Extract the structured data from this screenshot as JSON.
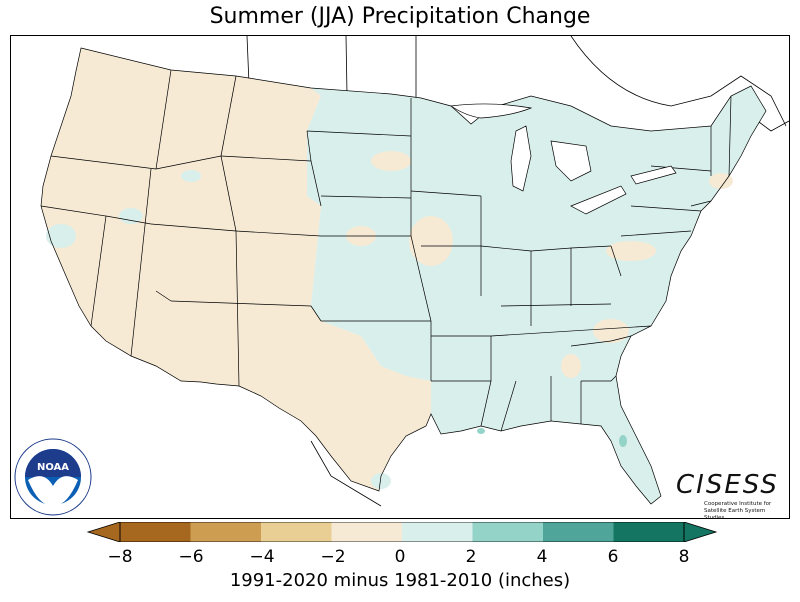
{
  "title": "Summer (JJA) Precipitation Change",
  "colorbar": {
    "label": "1991-2020 minus 1981-2010 (inches)",
    "ticks": [
      "−8",
      "−6",
      "−4",
      "−2",
      "0",
      "2",
      "4",
      "6",
      "8"
    ],
    "bins": [
      {
        "from": -8,
        "to": -6,
        "color": "#a6671f"
      },
      {
        "from": -6,
        "to": -4,
        "color": "#cd9d52"
      },
      {
        "from": -4,
        "to": -2,
        "color": "#e9cf93"
      },
      {
        "from": -2,
        "to": 0,
        "color": "#f6ead5"
      },
      {
        "from": 0,
        "to": 2,
        "color": "#d9efeb"
      },
      {
        "from": 2,
        "to": 4,
        "color": "#94d3c8"
      },
      {
        "from": 4,
        "to": 6,
        "color": "#4fa59a"
      },
      {
        "from": 6,
        "to": 8,
        "color": "#137562"
      }
    ],
    "extend": "both"
  },
  "map": {
    "region": "Contiguous United States",
    "west_color": "#f6ead5",
    "east_color": "#d9efeb",
    "state_border_color": "#000000"
  },
  "logos": {
    "noaa_text": "NOAA",
    "noaa_ring_text": "NATIONAL OCEANIC AND ATMOSPHERIC ADMINISTRATION",
    "noaa_ring_bottom": "U.S. DEPARTMENT OF COMMERCE",
    "cisess_name": "CISESS",
    "cisess_subtitle": "Cooperative Institute for Satellite Earth System Studies"
  }
}
